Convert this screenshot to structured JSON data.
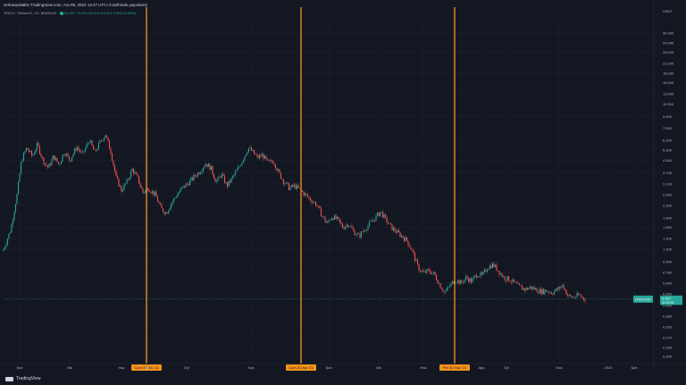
{
  "header": {
    "line1": "serkanpolatkin TradingView.com, Ara 05, 2022 14:47 UTC+3 tarihinde yayınlandı",
    "line2_symbol": "1INCH / TetherUS, 1G, BINANCE",
    "line2_values": "A0.497  Y0.504  D0.492  K0.497  0.000 (0.00%)"
  },
  "price_label": {
    "value": "0.497",
    "time": "11:12:39",
    "symbol": "1INCHUSDT",
    "color": "#26a69a"
  },
  "currency": "USDT",
  "footer": {
    "brand": "TradingView"
  },
  "colors": {
    "up": "#26a69a",
    "down": "#ef5350",
    "marker": "#f7931a",
    "background": "#131722"
  },
  "chart_data": {
    "type": "candlestick",
    "y_scale": "log",
    "y_ticks": [
      "34.000",
      "29.000",
      "25.000",
      "21.000",
      "18.000",
      "15.500",
      "13.000",
      "11.000",
      "9.000",
      "7.500",
      "6.200",
      "5.300",
      "4.500",
      "3.700",
      "3.100",
      "2.600",
      "2.200",
      "1.800",
      "1.550",
      "1.300",
      "1.100",
      "0.900",
      "0.760",
      "0.640",
      "0.540",
      "0.450",
      "0.380",
      "0.320",
      "0.270",
      "0.230",
      "0.200"
    ],
    "x_ticks": [
      "Şub",
      "Mk",
      "Haz",
      "Ağu",
      "Eyl",
      "Kas",
      "Şub",
      "Mk",
      "Haz",
      "Ağu",
      "Eyl",
      "Kas",
      "2023",
      "Şub"
    ],
    "markers": [
      {
        "label": "Cum 30 Nis '21",
        "price": 2.4
      },
      {
        "label": "Cum 31 Ara '21",
        "price": 2.9
      },
      {
        "label": "Per 30 Haz '22",
        "price": 0.6
      }
    ],
    "price_path": [
      [
        0,
        1.1
      ],
      [
        8,
        1.5
      ],
      [
        15,
        2.6
      ],
      [
        20,
        4.5
      ],
      [
        26,
        5.5
      ],
      [
        32,
        4.8
      ],
      [
        38,
        5.8
      ],
      [
        44,
        4.5
      ],
      [
        50,
        4.0
      ],
      [
        56,
        4.8
      ],
      [
        62,
        4.2
      ],
      [
        68,
        5.2
      ],
      [
        74,
        4.5
      ],
      [
        82,
        5.6
      ],
      [
        88,
        4.9
      ],
      [
        96,
        6.2
      ],
      [
        102,
        5.1
      ],
      [
        108,
        6.0
      ],
      [
        114,
        6.8
      ],
      [
        120,
        5.2
      ],
      [
        126,
        3.4
      ],
      [
        132,
        2.8
      ],
      [
        138,
        3.2
      ],
      [
        144,
        3.9
      ],
      [
        150,
        3.4
      ],
      [
        156,
        2.7
      ],
      [
        162,
        2.9
      ],
      [
        170,
        2.6
      ],
      [
        176,
        2.1
      ],
      [
        182,
        1.95
      ],
      [
        188,
        2.3
      ],
      [
        194,
        2.6
      ],
      [
        200,
        2.9
      ],
      [
        208,
        3.2
      ],
      [
        214,
        3.5
      ],
      [
        220,
        3.8
      ],
      [
        226,
        4.3
      ],
      [
        232,
        4.0
      ],
      [
        238,
        3.2
      ],
      [
        244,
        3.6
      ],
      [
        250,
        3.0
      ],
      [
        256,
        3.4
      ],
      [
        262,
        3.9
      ],
      [
        268,
        4.6
      ],
      [
        274,
        5.5
      ],
      [
        278,
        5.2
      ],
      [
        284,
        4.7
      ],
      [
        290,
        4.9
      ],
      [
        296,
        4.3
      ],
      [
        302,
        4.5
      ],
      [
        308,
        3.7
      ],
      [
        314,
        3.2
      ],
      [
        320,
        2.9
      ],
      [
        326,
        3.0
      ],
      [
        332,
        2.8
      ],
      [
        338,
        2.6
      ],
      [
        344,
        2.4
      ],
      [
        350,
        2.25
      ],
      [
        356,
        1.9
      ],
      [
        362,
        1.65
      ],
      [
        368,
        1.85
      ],
      [
        374,
        1.75
      ],
      [
        380,
        1.55
      ],
      [
        386,
        1.65
      ],
      [
        392,
        1.45
      ],
      [
        398,
        1.35
      ],
      [
        404,
        1.5
      ],
      [
        410,
        1.65
      ],
      [
        416,
        1.8
      ],
      [
        422,
        2.0
      ],
      [
        428,
        1.75
      ],
      [
        434,
        1.55
      ],
      [
        440,
        1.45
      ],
      [
        446,
        1.35
      ],
      [
        452,
        1.25
      ],
      [
        458,
        1.05
      ],
      [
        464,
        0.82
      ],
      [
        470,
        0.75
      ],
      [
        476,
        0.78
      ],
      [
        482,
        0.74
      ],
      [
        488,
        0.63
      ],
      [
        494,
        0.55
      ],
      [
        500,
        0.62
      ],
      [
        506,
        0.68
      ],
      [
        512,
        0.64
      ],
      [
        518,
        0.7
      ],
      [
        524,
        0.66
      ],
      [
        530,
        0.74
      ],
      [
        536,
        0.72
      ],
      [
        542,
        0.83
      ],
      [
        548,
        0.86
      ],
      [
        554,
        0.78
      ],
      [
        560,
        0.7
      ],
      [
        566,
        0.68
      ],
      [
        572,
        0.64
      ],
      [
        578,
        0.6
      ],
      [
        584,
        0.58
      ],
      [
        590,
        0.6
      ],
      [
        596,
        0.58
      ],
      [
        602,
        0.56
      ],
      [
        608,
        0.57
      ],
      [
        614,
        0.55
      ],
      [
        620,
        0.58
      ],
      [
        626,
        0.62
      ],
      [
        632,
        0.52
      ],
      [
        638,
        0.51
      ],
      [
        644,
        0.53
      ],
      [
        650,
        0.5
      ],
      [
        656,
        0.497
      ]
    ]
  }
}
